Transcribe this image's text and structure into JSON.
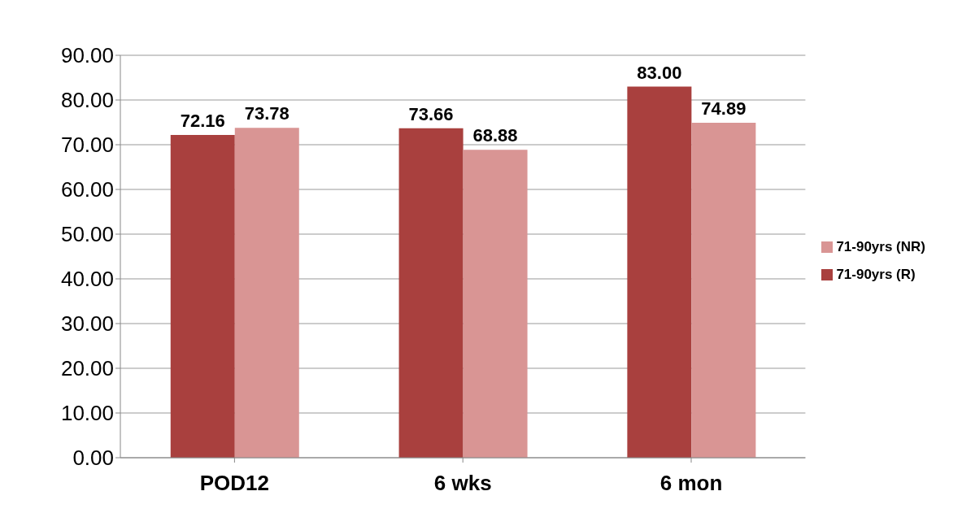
{
  "chart_data": {
    "type": "bar",
    "categories": [
      "POD12",
      "6 wks",
      "6 mon"
    ],
    "series": [
      {
        "name": "71-90yrs (R)",
        "color": "#a9403e",
        "values": [
          72.16,
          73.66,
          83.0
        ],
        "value_labels": [
          "72.16",
          "73.66",
          "83.00"
        ]
      },
      {
        "name": "71-90yrs (NR)",
        "color": "#d99594",
        "values": [
          73.78,
          68.88,
          74.89
        ],
        "value_labels": [
          "73.78",
          "68.88",
          "74.89"
        ]
      }
    ],
    "ylim": [
      0,
      90
    ],
    "yticks": [
      {
        "value": 0,
        "label": "0.00"
      },
      {
        "value": 10,
        "label": "10.00"
      },
      {
        "value": 20,
        "label": "20.00"
      },
      {
        "value": 30,
        "label": "30.00"
      },
      {
        "value": 40,
        "label": "40.00"
      },
      {
        "value": 50,
        "label": "50.00"
      },
      {
        "value": 60,
        "label": "60.00"
      },
      {
        "value": 70,
        "label": "70.00"
      },
      {
        "value": 80,
        "label": "80.00"
      },
      {
        "value": 90,
        "label": "90.00"
      }
    ],
    "grid": "y",
    "legend": "right"
  }
}
